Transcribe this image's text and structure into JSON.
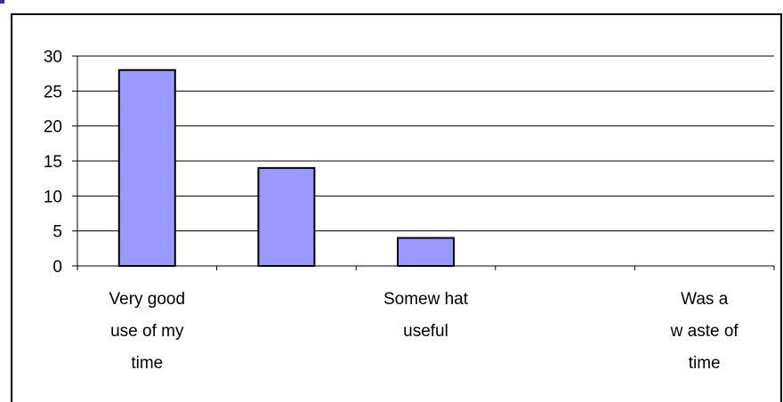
{
  "chart_data": {
    "type": "bar",
    "categories": [
      "Very good use of my time",
      "",
      "Somewhat useful",
      "",
      "Was a waste of time"
    ],
    "category_label_lines": [
      [
        "Very good",
        "use of my",
        "time"
      ],
      [],
      [
        "Somew hat",
        "useful"
      ],
      [],
      [
        "Was a",
        "w aste of",
        "time"
      ]
    ],
    "values": [
      28,
      14,
      4,
      0,
      0
    ],
    "ylim": [
      0,
      30
    ],
    "yticks": [
      0,
      5,
      10,
      15,
      20,
      25,
      30
    ],
    "title": "",
    "xlabel": "",
    "ylabel": "",
    "grid": true,
    "legend": "none"
  },
  "colors": {
    "bar_fill": "#9999ff",
    "bar_stroke": "#000000",
    "gridline": "#000000",
    "frame": "#000000",
    "header_accent": "#3333aa"
  }
}
